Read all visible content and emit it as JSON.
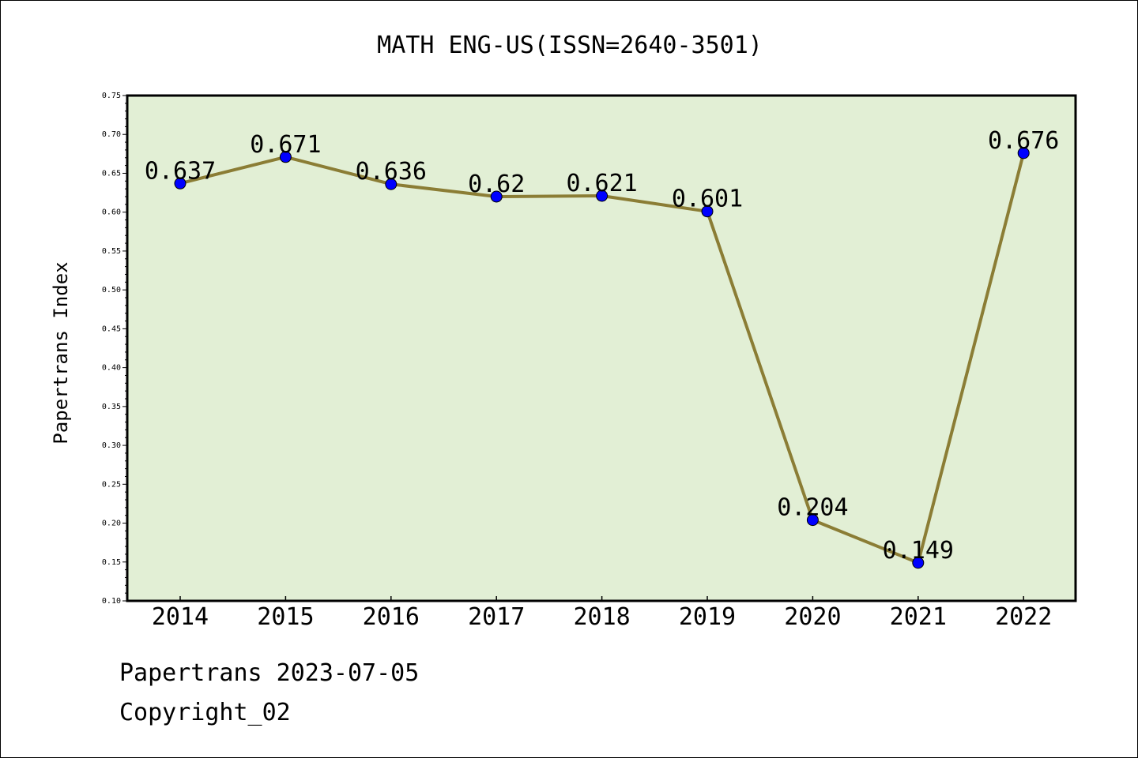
{
  "chart_data": {
    "type": "line",
    "title": "MATH ENG-US(ISSN=2640-3501)",
    "xlabel": "",
    "ylabel": "Papertrans Index",
    "categories": [
      "2014",
      "2015",
      "2016",
      "2017",
      "2018",
      "2019",
      "2020",
      "2021",
      "2022"
    ],
    "series": [
      {
        "values": [
          0.637,
          0.671,
          0.636,
          0.62,
          0.621,
          0.601,
          0.204,
          0.149,
          0.676
        ]
      }
    ],
    "data_labels": [
      "0.637",
      "0.671",
      "0.636",
      "0.62",
      "0.621",
      "0.601",
      "0.204",
      "0.149",
      "0.676"
    ],
    "ylim": [
      0.1,
      0.75
    ],
    "yticks": [
      "0.10",
      "0.15",
      "0.20",
      "0.25",
      "0.30",
      "0.35",
      "0.40",
      "0.45",
      "0.50",
      "0.55",
      "0.60",
      "0.65",
      "0.70",
      "0.75"
    ],
    "grid": false,
    "legend": "none",
    "colors": {
      "plot_background": "#e2efd5",
      "line": "#8b7d35",
      "marker": "#0000ff"
    }
  },
  "footer": {
    "line1": "Papertrans 2023-07-05",
    "line2": "Copyright_02"
  }
}
